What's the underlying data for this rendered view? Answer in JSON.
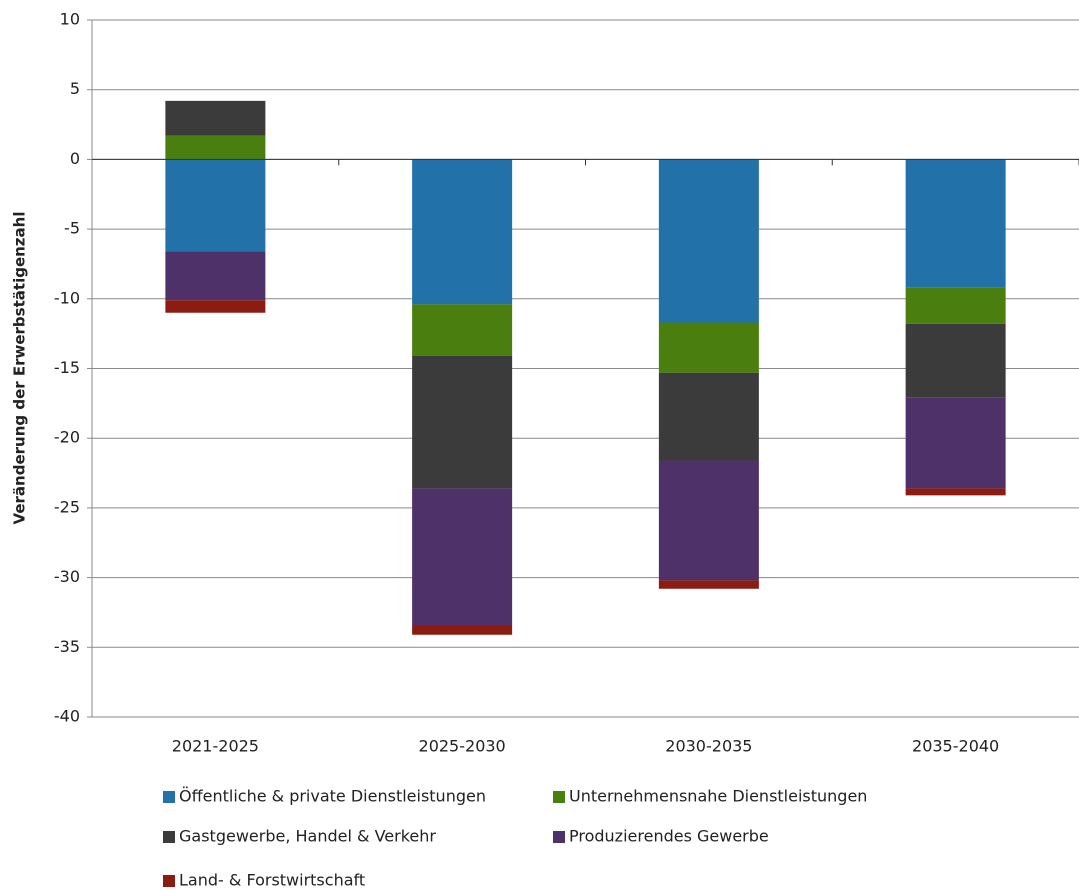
{
  "chart_data": {
    "type": "stacked-bar",
    "y_label": "Veränderung der Erwerbstätigenzahl",
    "categories": [
      "2021-2025",
      "2025-2030",
      "2030-2035",
      "2035-2040"
    ],
    "series": [
      {
        "name": "Öffentliche & private Dienstleistungen",
        "color": "#2271a9",
        "values": [
          -6.6,
          -10.4,
          -11.7,
          -9.2
        ]
      },
      {
        "name": "Unternehmensnahe Dienstleistungen",
        "color": "#4a7f0f",
        "values": [
          1.7,
          -3.7,
          -3.6,
          -2.6
        ]
      },
      {
        "name": "Gastgewerbe, Handel & Verkehr",
        "color": "#3b3b3b",
        "values": [
          2.5,
          -9.5,
          -6.3,
          -5.3
        ]
      },
      {
        "name": "Produzierendes Gewerbe",
        "color": "#4f3169",
        "values": [
          -3.5,
          -9.8,
          -8.6,
          -6.5
        ]
      },
      {
        "name": "Land- & Forstwirtschaft",
        "color": "#8c1c12",
        "values": [
          -0.9,
          -0.7,
          -0.6,
          -0.5
        ]
      }
    ],
    "ylim": [
      -40,
      10
    ],
    "yticks": [
      -40,
      -35,
      -30,
      -25,
      -20,
      -15,
      -10,
      -5,
      0,
      5,
      10
    ],
    "grid": true
  }
}
